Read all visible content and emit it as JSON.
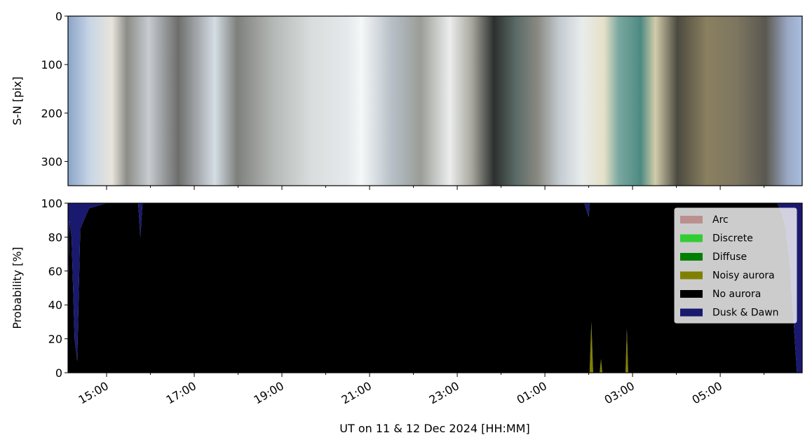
{
  "chart_data": [
    {
      "type": "image",
      "ylabel": "S-N [pix]",
      "ylim": [
        350,
        0
      ],
      "yticks": [
        0,
        100,
        200,
        300
      ]
    },
    {
      "type": "area",
      "stacked": true,
      "xlabel": "UT on 11 & 12 Dec 2024 [HH:MM]",
      "ylabel": "Probability [%]",
      "xlim": [
        14.12,
        30.87
      ],
      "xticks": [
        {
          "value": 15,
          "label": "15:00"
        },
        {
          "value": 17,
          "label": "17:00"
        },
        {
          "value": 19,
          "label": "19:00"
        },
        {
          "value": 21,
          "label": "21:00"
        },
        {
          "value": 23,
          "label": "23:00"
        },
        {
          "value": 25,
          "label": "01:00"
        },
        {
          "value": 27,
          "label": "03:00"
        },
        {
          "value": 29,
          "label": "05:00"
        }
      ],
      "xminorticks": [
        16,
        18,
        20,
        22,
        24,
        26,
        28,
        30
      ],
      "ylim": [
        0,
        100
      ],
      "yticks": [
        0,
        20,
        40,
        60,
        80,
        100
      ],
      "legend": "upper right",
      "x": [
        14.12,
        14.15,
        14.2,
        14.27,
        14.33,
        14.4,
        14.6,
        15.0,
        15.72,
        15.77,
        15.82,
        16.0,
        20.0,
        25.9,
        26.0,
        26.02,
        26.06,
        26.1,
        26.25,
        26.28,
        26.31,
        26.84,
        26.87,
        26.9,
        30.3,
        30.39,
        30.5,
        30.6,
        30.7,
        30.75,
        30.87
      ],
      "series": [
        {
          "name": "Arc",
          "color": "#bc8f8f",
          "values": [
            0,
            0,
            0,
            0,
            0,
            0,
            0,
            0,
            0,
            0,
            0,
            0,
            0,
            0,
            0,
            0,
            0,
            0,
            0,
            0,
            0,
            0,
            0,
            0,
            0,
            0,
            0,
            0,
            0,
            0,
            0
          ]
        },
        {
          "name": "Discrete",
          "color": "#32cd32",
          "values": [
            0,
            0,
            0,
            0,
            0,
            0,
            0,
            0,
            0,
            0,
            0,
            0,
            0,
            0,
            0,
            0,
            0,
            0,
            0,
            0,
            0,
            0,
            0,
            0,
            0,
            0,
            0,
            0,
            0,
            0,
            0
          ]
        },
        {
          "name": "Diffuse",
          "color": "#008000",
          "values": [
            0,
            0,
            0,
            0,
            0,
            0,
            0,
            0,
            0,
            0,
            0,
            0,
            0,
            0,
            0,
            0,
            0,
            0,
            0,
            0,
            0,
            0,
            0,
            0,
            0,
            0,
            0,
            0,
            0,
            0,
            0
          ]
        },
        {
          "name": "Noisy aurora",
          "color": "#808000",
          "values": [
            0,
            0,
            0,
            0,
            0,
            0,
            0,
            0,
            0,
            0,
            0,
            0,
            0,
            0,
            0,
            0,
            30,
            0,
            0,
            8,
            0,
            0,
            26,
            0,
            0,
            0,
            0,
            0,
            0,
            0,
            0
          ]
        },
        {
          "name": "No aurora",
          "color": "#000000",
          "values": [
            40,
            90,
            80,
            20,
            7,
            85,
            97,
            100,
            100,
            80,
            100,
            100,
            100,
            100,
            92,
            100,
            70,
            100,
            100,
            92,
            100,
            100,
            74,
            100,
            100,
            95,
            85,
            60,
            20,
            0,
            0
          ]
        },
        {
          "name": "Dusk & Dawn",
          "color": "#191970",
          "values": [
            60,
            10,
            20,
            80,
            93,
            15,
            3,
            0,
            0,
            20,
            0,
            0,
            0,
            0,
            8,
            0,
            0,
            0,
            0,
            0,
            0,
            0,
            0,
            0,
            0,
            5,
            15,
            40,
            80,
            100,
            100
          ]
        }
      ]
    }
  ]
}
